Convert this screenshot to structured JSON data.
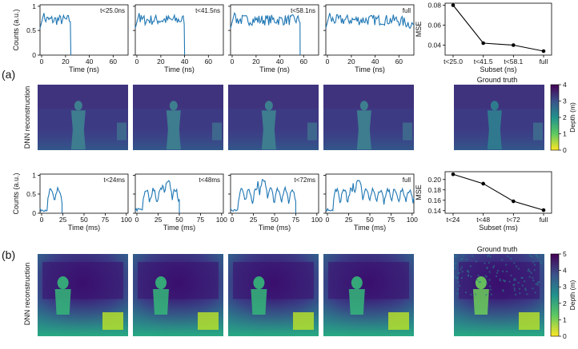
{
  "panel_labels": [
    "(a)",
    "(b)"
  ],
  "a": {
    "hist_ylabel": "Counts (a.u.)",
    "hist_xlabel": "Time (ns)",
    "hist_xticks": [
      "0",
      "20",
      "40",
      "60"
    ],
    "hist_yticks": [
      "0",
      "0.5",
      "1"
    ],
    "hist_labels": [
      "t<25.0ns",
      "t<41.5ns",
      "t<58.1ns",
      "full"
    ],
    "recon_ylabel": "DNN reconstruction",
    "gt_title": "Ground truth",
    "cbar_label": "Depth (m)",
    "cbar_ticks": [
      "0",
      "1",
      "2",
      "3",
      "4"
    ]
  },
  "b": {
    "hist_ylabel": "Counts (a.u.)",
    "hist_xlabel": "Time (ms)",
    "hist_xticks": [
      "0",
      "25",
      "50",
      "75",
      "100"
    ],
    "hist_yticks": [
      "0",
      "0.5",
      "1"
    ],
    "hist_labels": [
      "t<24ms",
      "t<48ms",
      "t<72ms",
      "full"
    ],
    "recon_ylabel": "DNN reconstruction",
    "gt_title": "Ground truth",
    "cbar_label": "Depth (m)",
    "cbar_ticks": [
      "0",
      "1",
      "2",
      "3",
      "4",
      "5"
    ]
  },
  "chart_data": [
    {
      "type": "line",
      "title": "",
      "xlabel": "Subset (ns)",
      "ylabel": "MSE",
      "categories": [
        "t<25.0",
        "t<41.5",
        "t<58.1",
        "full"
      ],
      "values": [
        0.08,
        0.042,
        0.04,
        0.034
      ],
      "yticks": [
        "0.04",
        "0.06",
        "0.08"
      ],
      "ylim": [
        0.03,
        0.082
      ],
      "color": "#000000"
    },
    {
      "type": "line",
      "title": "",
      "xlabel": "Subset (ms)",
      "ylabel": "MSE",
      "categories": [
        "t<24",
        "t<48",
        "t<72",
        "full"
      ],
      "values": [
        0.21,
        0.192,
        0.158,
        0.141
      ],
      "yticks": [
        "0.14",
        "0.16",
        "0.18",
        "0.20"
      ],
      "ylim": [
        0.135,
        0.215
      ],
      "color": "#000000"
    }
  ],
  "colors": {
    "line": "#1f77b4",
    "viridis_dark": "#440154",
    "viridis_purple": "#3b1f6e",
    "viridis_blue": "#31688e",
    "viridis_teal": "#21918c",
    "viridis_green": "#35b779",
    "viridis_yellow": "#fde725"
  }
}
